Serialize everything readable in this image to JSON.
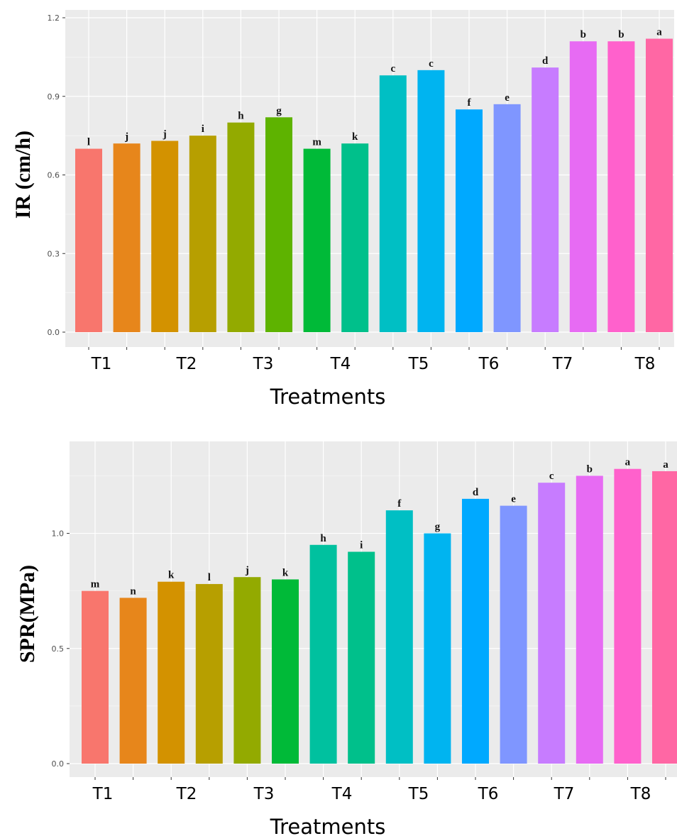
{
  "chart_data": [
    {
      "type": "bar",
      "xlabel": "Treatments",
      "ylabel": "IR (cm/h)",
      "ylim": [
        0,
        1.2
      ],
      "yticks": [
        "0.0",
        "0.3",
        "0.6",
        "0.9",
        "1.2"
      ],
      "tick_labels": [
        "T1",
        "T2",
        "T3",
        "T4",
        "T5",
        "T6",
        "T7",
        "T8"
      ],
      "values": [
        0.7,
        0.72,
        0.73,
        0.75,
        0.8,
        0.82,
        0.7,
        0.72,
        0.98,
        1.0,
        0.85,
        0.87,
        1.01,
        1.11,
        1.11,
        1.12
      ],
      "letters": [
        "l",
        "j",
        "j",
        "i",
        "h",
        "g",
        "m",
        "k",
        "c",
        "c",
        "f",
        "e",
        "d",
        "b",
        "b",
        "a"
      ],
      "colors": [
        "#F8766D",
        "#E7861B",
        "#D39200",
        "#B79F00",
        "#93AA00",
        "#5EB300",
        "#00BA38",
        "#00C08B",
        "#00BFC4",
        "#00B4F0",
        "#00A9FF",
        "#7F96FF",
        "#C77CFF",
        "#E76BF3",
        "#FF61CC",
        "#FF67A4"
      ],
      "grid": true
    },
    {
      "type": "bar",
      "xlabel": "Treatments",
      "ylabel": "SPR(MPa)",
      "ylim": [
        0,
        1.35
      ],
      "yticks": [
        "0.0",
        "0.5",
        "1.0"
      ],
      "tick_labels": [
        "T1",
        "T2",
        "T3",
        "T4",
        "T5",
        "T6",
        "T7",
        "T8"
      ],
      "values": [
        0.75,
        0.72,
        0.79,
        0.78,
        0.81,
        0.8,
        0.95,
        0.92,
        1.1,
        1.0,
        1.15,
        1.12,
        1.22,
        1.25,
        1.28,
        1.27
      ],
      "letters": [
        "m",
        "n",
        "k",
        "l",
        "j",
        "k",
        "h",
        "i",
        "f",
        "g",
        "d",
        "e",
        "c",
        "b",
        "a",
        "a"
      ],
      "colors": [
        "#F8766D",
        "#E7861B",
        "#D39200",
        "#B79F00",
        "#93AA00",
        "#00BA38",
        "#00C19F",
        "#00C08B",
        "#00BFC4",
        "#00B4F0",
        "#00A9FF",
        "#7F96FF",
        "#C77CFF",
        "#E76BF3",
        "#FF61CC",
        "#FF67A4"
      ],
      "grid": true
    }
  ]
}
